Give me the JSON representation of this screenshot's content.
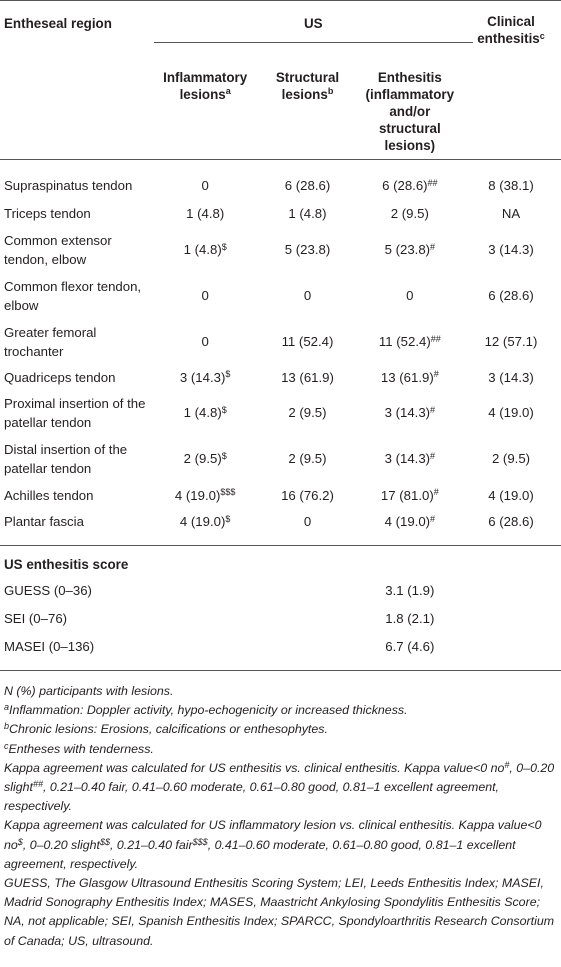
{
  "header": {
    "col_region": "Entheseal region",
    "col_us": "US",
    "col_clinical": "Clinical enthesitis",
    "col_clinical_sup": "c",
    "sub_inflammatory": "Inflammatory lesions",
    "sub_inflammatory_sup": "a",
    "sub_structural": "Structural lesions",
    "sub_structural_sup": "b",
    "sub_enthesitis": "Enthesitis (inflammatory and/or structural lesions)"
  },
  "rows": [
    {
      "region": "Supraspinatus tendon",
      "inflammatory": "0",
      "inflammatory_sup": "",
      "structural": "6 (28.6)",
      "enthesitis": "6 (28.6)",
      "enthesitis_sup": "##",
      "clinical": "8 (38.1)"
    },
    {
      "region": "Triceps tendon",
      "inflammatory": "1 (4.8)",
      "inflammatory_sup": "",
      "structural": "1 (4.8)",
      "enthesitis": "2 (9.5)",
      "enthesitis_sup": "",
      "clinical": "NA"
    },
    {
      "region": "Common extensor tendon, elbow",
      "inflammatory": "1 (4.8)",
      "inflammatory_sup": "$",
      "structural": "5 (23.8)",
      "enthesitis": "5 (23.8)",
      "enthesitis_sup": "#",
      "clinical": "3 (14.3)"
    },
    {
      "region": "Common flexor tendon, elbow",
      "inflammatory": "0",
      "inflammatory_sup": "",
      "structural": "0",
      "enthesitis": "0",
      "enthesitis_sup": "",
      "clinical": "6 (28.6)"
    },
    {
      "region": "Greater femoral trochanter",
      "inflammatory": "0",
      "inflammatory_sup": "",
      "structural": "11 (52.4)",
      "enthesitis": "11 (52.4)",
      "enthesitis_sup": "##",
      "clinical": "12 (57.1)"
    },
    {
      "region": "Quadriceps tendon",
      "inflammatory": "3 (14.3)",
      "inflammatory_sup": "$",
      "structural": "13 (61.9)",
      "enthesitis": "13 (61.9)",
      "enthesitis_sup": "#",
      "clinical": "3 (14.3)"
    },
    {
      "region": "Proximal insertion of the patellar tendon",
      "inflammatory": "1 (4.8)",
      "inflammatory_sup": "$",
      "structural": "2 (9.5)",
      "enthesitis": "3 (14.3)",
      "enthesitis_sup": "#",
      "clinical": "4 (19.0)"
    },
    {
      "region": "Distal insertion of the patellar tendon",
      "inflammatory": "2 (9.5)",
      "inflammatory_sup": "$",
      "structural": "2 (9.5)",
      "enthesitis": "3 (14.3)",
      "enthesitis_sup": "#",
      "clinical": "2 (9.5)"
    },
    {
      "region": "Achilles tendon",
      "inflammatory": "4 (19.0)",
      "inflammatory_sup": "$$$",
      "structural": "16 (76.2)",
      "enthesitis": "17 (81.0)",
      "enthesitis_sup": "#",
      "clinical": "4 (19.0)"
    },
    {
      "region": "Plantar fascia",
      "inflammatory": "4 (19.0)",
      "inflammatory_sup": "$",
      "structural": "0",
      "enthesitis": "4 (19.0)",
      "enthesitis_sup": "#",
      "clinical": "6 (28.6)"
    }
  ],
  "score_section": {
    "title": "US enthesitis score",
    "rows": [
      {
        "label": "GUESS (0–36)",
        "value": "3.1 (1.9)"
      },
      {
        "label": "SEI (0–76)",
        "value": "1.8 (2.1)"
      },
      {
        "label": "MASEI (0–136)",
        "value": "6.7 (4.6)"
      }
    ]
  },
  "notes": {
    "n_line": "N (%) participants with lesions.",
    "a_sup": "a",
    "a_text": "Inflammation: Doppler activity, hypo-echogenicity or increased thickness.",
    "b_sup": "b",
    "b_text": "Chronic lesions: Erosions, calcifications or enthesophytes.",
    "c_sup": "c",
    "c_text": "Entheses with tenderness.",
    "kappa1_a": "Kappa agreement was calculated for US enthesitis vs. clinical enthesitis. Kappa value<0 no",
    "kappa1_sup1": "#",
    "kappa1_b": ", 0–0.20 slight",
    "kappa1_sup2": "##",
    "kappa1_c": ", 0.21–0.40 fair, 0.41–0.60 moderate, 0.61–0.80 good, 0.81–1 excellent agreement, respectively.",
    "kappa2_a": "Kappa agreement was calculated for US inflammatory lesion vs. clinical enthesitis. Kappa value<0 no",
    "kappa2_sup1": "$",
    "kappa2_b": ", 0–0.20 slight",
    "kappa2_sup2": "$$",
    "kappa2_c": ", 0.21–0.40 fair",
    "kappa2_sup3": "$$$",
    "kappa2_d": ", 0.41–0.60 moderate, 0.61–0.80 good, 0.81–1 excellent agreement, respectively.",
    "abbrev": "GUESS, The Glasgow Ultrasound Enthesitis Scoring System; LEI, Leeds Enthesitis Index; MASEI, Madrid Sonography Enthesitis Index; MASES, Maastricht Ankylosing Spondylitis Enthesitis Score; NA, not applicable; SEI, Spanish Enthesitis Index; SPARCC, Spondyloarthritis Research Consortium of Canada; US, ultrasound."
  }
}
